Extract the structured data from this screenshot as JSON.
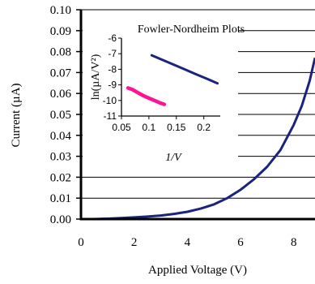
{
  "chart_data": [
    {
      "id": "main",
      "type": "line",
      "title": "",
      "xlabel": "Applied Voltage (V)",
      "ylabel": "Current (µA)",
      "xlim": [
        0,
        8.8
      ],
      "ylim": [
        0,
        0.1
      ],
      "xticks": [
        "0",
        "2",
        "4",
        "6",
        "8"
      ],
      "yticks": [
        "0.00",
        "0.01",
        "0.02",
        "0.03",
        "0.04",
        "0.05",
        "0.06",
        "0.07",
        "0.08",
        "0.09",
        "0.10"
      ],
      "grid": "horizontal",
      "legend": "none",
      "series": [
        {
          "color": "#1a237e",
          "x": [
            0.0,
            0.5,
            1.0,
            1.5,
            2.0,
            2.5,
            3.0,
            3.5,
            4.0,
            4.5,
            5.0,
            5.5,
            6.0,
            6.5,
            7.0,
            7.5,
            8.0,
            8.3,
            8.6,
            8.8
          ],
          "y": [
            0.0,
            0.0,
            0.0002,
            0.0005,
            0.0008,
            0.0012,
            0.0017,
            0.0025,
            0.0035,
            0.005,
            0.007,
            0.01,
            0.014,
            0.019,
            0.025,
            0.033,
            0.045,
            0.054,
            0.066,
            0.077
          ]
        }
      ]
    },
    {
      "id": "inset",
      "type": "scatter",
      "title": "Fowler-Nordheim Plots",
      "xlabel": "1/V",
      "ylabel": "ln(µA/V²)",
      "xlim": [
        0.05,
        0.23
      ],
      "ylim": [
        -11,
        -6
      ],
      "xticks": [
        "0.05",
        "0.1",
        "0.15",
        "0.2"
      ],
      "yticks": [
        "-6",
        "-7",
        "-8",
        "-9",
        "-10",
        "-11"
      ],
      "legend": "none",
      "series": [
        {
          "color": "#1a237e",
          "x": [
            0.105,
            0.125,
            0.145,
            0.165,
            0.185,
            0.205,
            0.225
          ],
          "y": [
            -7.1,
            -7.4,
            -7.7,
            -8.0,
            -8.3,
            -8.6,
            -8.9
          ]
        },
        {
          "color": "#ff1493",
          "x": [
            0.062,
            0.07,
            0.08,
            0.09,
            0.1,
            0.11,
            0.12,
            0.128
          ],
          "y": [
            -9.2,
            -9.3,
            -9.5,
            -9.7,
            -9.85,
            -10.0,
            -10.15,
            -10.25
          ]
        }
      ]
    }
  ]
}
